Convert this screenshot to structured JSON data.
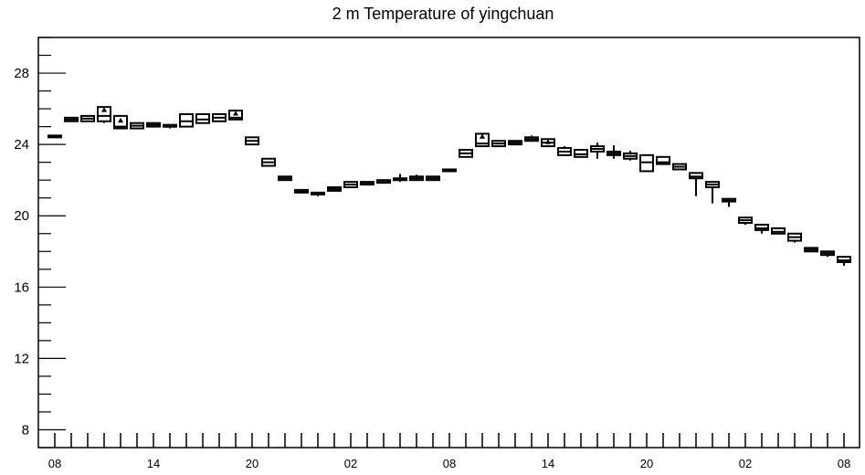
{
  "chart_data": {
    "type": "box",
    "title": "2 m Temperature of yingchuan",
    "xlabel": "",
    "ylabel": "",
    "ylim": [
      7,
      30
    ],
    "yticks": [
      8,
      12,
      16,
      20,
      24,
      28
    ],
    "xtick_labels": [
      "08",
      "14",
      "20",
      "02",
      "08",
      "14",
      "20",
      "02",
      "08"
    ],
    "grid": false,
    "series": [
      {
        "boxes": [
          {
            "q1": 24.4,
            "q3": 24.5,
            "median": 24.45,
            "lo": 24.4,
            "hi": 24.5,
            "mean": null
          },
          {
            "q1": 25.3,
            "q3": 25.5,
            "median": 25.4,
            "lo": 25.3,
            "hi": 25.5,
            "mean": null
          },
          {
            "q1": 25.3,
            "q3": 25.6,
            "median": 25.45,
            "lo": 25.3,
            "hi": 25.6,
            "mean": null
          },
          {
            "q1": 25.3,
            "q3": 26.1,
            "median": 25.6,
            "lo": 25.2,
            "hi": 26.1,
            "mean": 25.95
          },
          {
            "q1": 24.9,
            "q3": 25.6,
            "median": 25.0,
            "lo": 24.9,
            "hi": 25.6,
            "mean": 25.35
          },
          {
            "q1": 24.9,
            "q3": 25.2,
            "median": 25.05,
            "lo": 24.9,
            "hi": 25.2,
            "mean": null
          },
          {
            "q1": 25.0,
            "q3": 25.2,
            "median": 25.1,
            "lo": 25.0,
            "hi": 25.2,
            "mean": null
          },
          {
            "q1": 25.0,
            "q3": 25.1,
            "median": 25.0,
            "lo": 24.9,
            "hi": 25.1,
            "mean": null
          },
          {
            "q1": 25.0,
            "q3": 25.7,
            "median": 25.3,
            "lo": 25.0,
            "hi": 25.7,
            "mean": null
          },
          {
            "q1": 25.2,
            "q3": 25.7,
            "median": 25.4,
            "lo": 25.2,
            "hi": 25.7,
            "mean": null
          },
          {
            "q1": 25.3,
            "q3": 25.7,
            "median": 25.5,
            "lo": 25.3,
            "hi": 25.7,
            "mean": null
          },
          {
            "q1": 25.4,
            "q3": 25.9,
            "median": 25.5,
            "lo": 25.4,
            "hi": 25.9,
            "mean": 25.75
          },
          {
            "q1": 24.0,
            "q3": 24.4,
            "median": 24.2,
            "lo": 24.0,
            "hi": 24.4,
            "mean": null
          },
          {
            "q1": 22.8,
            "q3": 23.2,
            "median": 23.0,
            "lo": 22.8,
            "hi": 23.2,
            "mean": null
          },
          {
            "q1": 22.0,
            "q3": 22.2,
            "median": 22.1,
            "lo": 22.0,
            "hi": 22.2,
            "mean": null
          },
          {
            "q1": 21.3,
            "q3": 21.45,
            "median": 21.35,
            "lo": 21.3,
            "hi": 21.45,
            "mean": null
          },
          {
            "q1": 21.2,
            "q3": 21.3,
            "median": 21.25,
            "lo": 21.1,
            "hi": 21.3,
            "mean": null
          },
          {
            "q1": 21.4,
            "q3": 21.6,
            "median": 21.5,
            "lo": 21.35,
            "hi": 21.6,
            "mean": null
          },
          {
            "q1": 21.6,
            "q3": 21.9,
            "median": 21.75,
            "lo": 21.6,
            "hi": 21.9,
            "mean": null
          },
          {
            "q1": 21.75,
            "q3": 21.9,
            "median": 21.8,
            "lo": 21.7,
            "hi": 21.95,
            "mean": null
          },
          {
            "q1": 21.85,
            "q3": 22.0,
            "median": 21.9,
            "lo": 21.8,
            "hi": 22.05,
            "mean": null
          },
          {
            "q1": 22.0,
            "q3": 22.1,
            "median": 22.05,
            "lo": 21.9,
            "hi": 22.35,
            "mean": null
          },
          {
            "q1": 22.0,
            "q3": 22.2,
            "median": 22.1,
            "lo": 22.0,
            "hi": 22.3,
            "mean": null
          },
          {
            "q1": 22.0,
            "q3": 22.2,
            "median": 22.1,
            "lo": 22.0,
            "hi": 22.2,
            "mean": null
          },
          {
            "q1": 22.5,
            "q3": 22.6,
            "median": 22.55,
            "lo": 22.5,
            "hi": 22.6,
            "mean": null
          },
          {
            "q1": 23.3,
            "q3": 23.7,
            "median": 23.5,
            "lo": 23.3,
            "hi": 23.7,
            "mean": null
          },
          {
            "q1": 23.9,
            "q3": 24.6,
            "median": 24.05,
            "lo": 23.9,
            "hi": 24.6,
            "mean": 24.45
          },
          {
            "q1": 23.9,
            "q3": 24.2,
            "median": 24.05,
            "lo": 23.9,
            "hi": 24.2,
            "mean": null
          },
          {
            "q1": 24.0,
            "q3": 24.2,
            "median": 24.1,
            "lo": 24.0,
            "hi": 24.2,
            "mean": null
          },
          {
            "q1": 24.2,
            "q3": 24.4,
            "median": 24.3,
            "lo": 24.2,
            "hi": 24.5,
            "mean": null
          },
          {
            "q1": 23.9,
            "q3": 24.3,
            "median": 24.1,
            "lo": 23.9,
            "hi": 24.3,
            "mean": 24.15
          },
          {
            "q1": 23.4,
            "q3": 23.8,
            "median": 23.6,
            "lo": 23.4,
            "hi": 23.9,
            "mean": null
          },
          {
            "q1": 23.3,
            "q3": 23.7,
            "median": 23.45,
            "lo": 23.3,
            "hi": 23.7,
            "mean": null
          },
          {
            "q1": 23.6,
            "q3": 23.9,
            "median": 23.75,
            "lo": 23.2,
            "hi": 24.1,
            "mean": null
          },
          {
            "q1": 23.4,
            "q3": 23.6,
            "median": 23.5,
            "lo": 23.2,
            "hi": 23.95,
            "mean": null
          },
          {
            "q1": 23.2,
            "q3": 23.5,
            "median": 23.35,
            "lo": 23.1,
            "hi": 23.65,
            "mean": null
          },
          {
            "q1": 22.5,
            "q3": 23.4,
            "median": 23.0,
            "lo": 22.5,
            "hi": 23.4,
            "mean": null
          },
          {
            "q1": 22.9,
            "q3": 23.3,
            "median": 23.0,
            "lo": 22.9,
            "hi": 23.3,
            "mean": null
          },
          {
            "q1": 22.6,
            "q3": 22.9,
            "median": 22.75,
            "lo": 22.6,
            "hi": 22.9,
            "mean": null
          },
          {
            "q1": 22.1,
            "q3": 22.4,
            "median": 22.2,
            "lo": 21.1,
            "hi": 22.4,
            "mean": null
          },
          {
            "q1": 21.6,
            "q3": 21.9,
            "median": 21.75,
            "lo": 20.7,
            "hi": 21.9,
            "mean": null
          },
          {
            "q1": 20.8,
            "q3": 20.95,
            "median": 20.85,
            "lo": 20.5,
            "hi": 20.95,
            "mean": null
          },
          {
            "q1": 19.6,
            "q3": 19.9,
            "median": 19.75,
            "lo": 19.5,
            "hi": 19.9,
            "mean": null
          },
          {
            "q1": 19.2,
            "q3": 19.5,
            "median": 19.3,
            "lo": 19.0,
            "hi": 19.5,
            "mean": null
          },
          {
            "q1": 19.0,
            "q3": 19.3,
            "median": 19.1,
            "lo": 19.0,
            "hi": 19.3,
            "mean": null
          },
          {
            "q1": 18.6,
            "q3": 19.0,
            "median": 18.8,
            "lo": 18.5,
            "hi": 19.0,
            "mean": null
          },
          {
            "q1": 18.0,
            "q3": 18.2,
            "median": 18.1,
            "lo": 18.0,
            "hi": 18.2,
            "mean": null
          },
          {
            "q1": 17.8,
            "q3": 18.0,
            "median": 17.9,
            "lo": 17.7,
            "hi": 18.0,
            "mean": null
          },
          {
            "q1": 17.4,
            "q3": 17.7,
            "median": 17.5,
            "lo": 17.2,
            "hi": 17.7,
            "mean": null
          }
        ]
      }
    ]
  }
}
